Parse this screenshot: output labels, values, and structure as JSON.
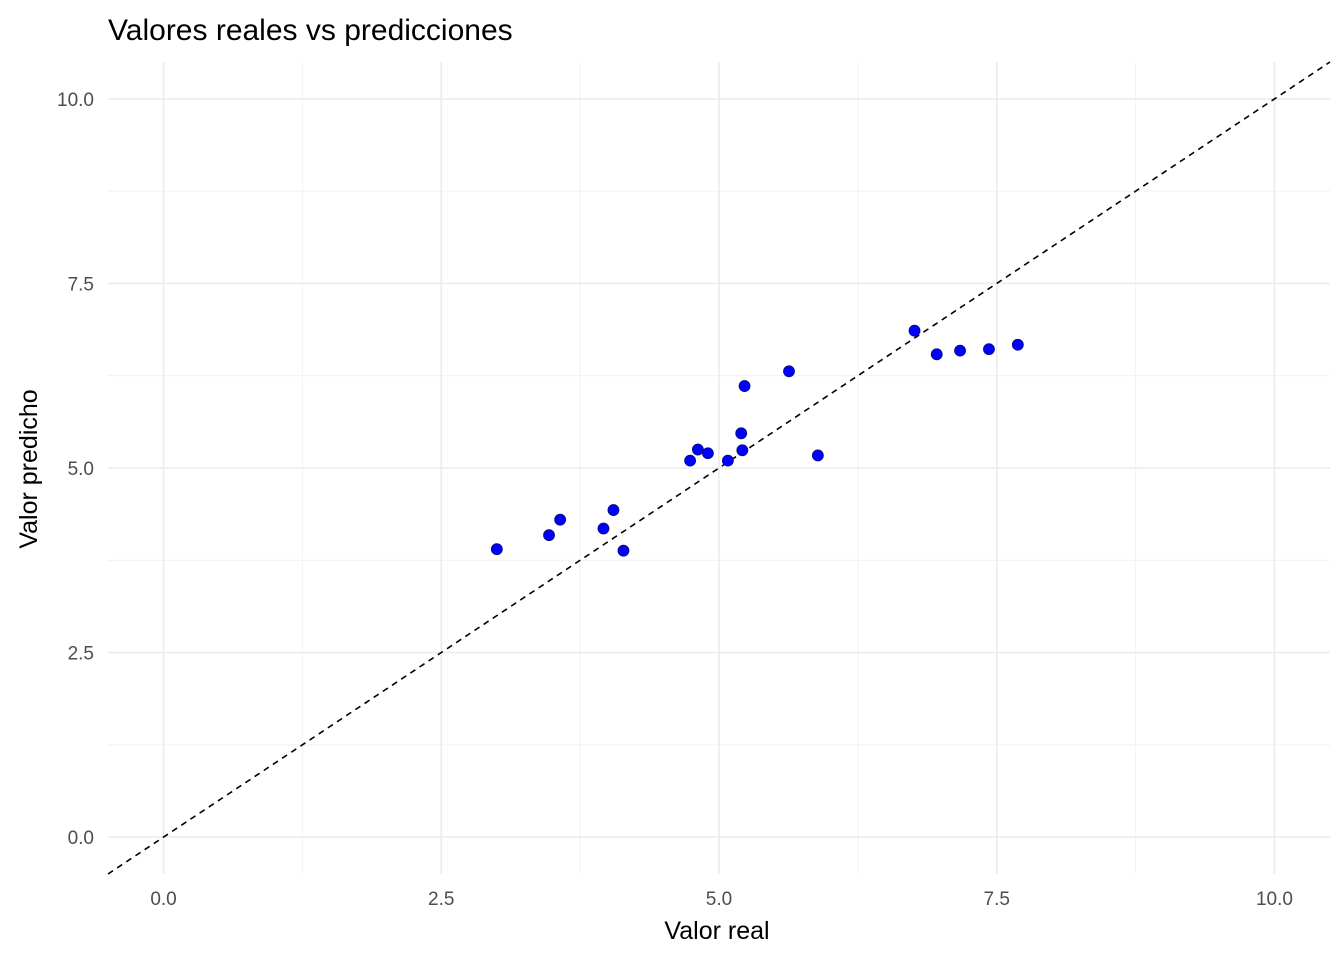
{
  "chart_data": {
    "type": "scatter",
    "title": "Valores reales vs predicciones",
    "xlabel": "Valor real",
    "ylabel": "Valor predicho",
    "xlim": [
      -0.5,
      10.5
    ],
    "ylim": [
      -0.5,
      10.5
    ],
    "x_ticks": [
      0.0,
      2.5,
      5.0,
      7.5,
      10.0
    ],
    "y_ticks": [
      0.0,
      2.5,
      5.0,
      7.5,
      10.0
    ],
    "x_tick_labels": [
      "0.0",
      "2.5",
      "5.0",
      "7.5",
      "10.0"
    ],
    "y_tick_labels": [
      "0.0",
      "2.5",
      "5.0",
      "7.5",
      "10.0"
    ],
    "grid": true,
    "reference_line": {
      "slope": 1,
      "intercept": 0,
      "style": "dashed",
      "color": "#000000"
    },
    "point_color": "#0000ff",
    "points": [
      {
        "x": 3.0,
        "y": 3.9
      },
      {
        "x": 3.47,
        "y": 4.09
      },
      {
        "x": 3.57,
        "y": 4.3
      },
      {
        "x": 3.96,
        "y": 4.18
      },
      {
        "x": 4.05,
        "y": 4.43
      },
      {
        "x": 4.14,
        "y": 3.88
      },
      {
        "x": 4.74,
        "y": 5.1
      },
      {
        "x": 4.81,
        "y": 5.25
      },
      {
        "x": 4.9,
        "y": 5.2
      },
      {
        "x": 5.08,
        "y": 5.1
      },
      {
        "x": 5.2,
        "y": 5.47
      },
      {
        "x": 5.21,
        "y": 5.24
      },
      {
        "x": 5.23,
        "y": 6.11
      },
      {
        "x": 5.63,
        "y": 6.31
      },
      {
        "x": 5.89,
        "y": 5.17
      },
      {
        "x": 6.76,
        "y": 6.86
      },
      {
        "x": 6.96,
        "y": 6.54
      },
      {
        "x": 7.17,
        "y": 6.59
      },
      {
        "x": 7.43,
        "y": 6.61
      },
      {
        "x": 7.69,
        "y": 6.67
      }
    ]
  }
}
